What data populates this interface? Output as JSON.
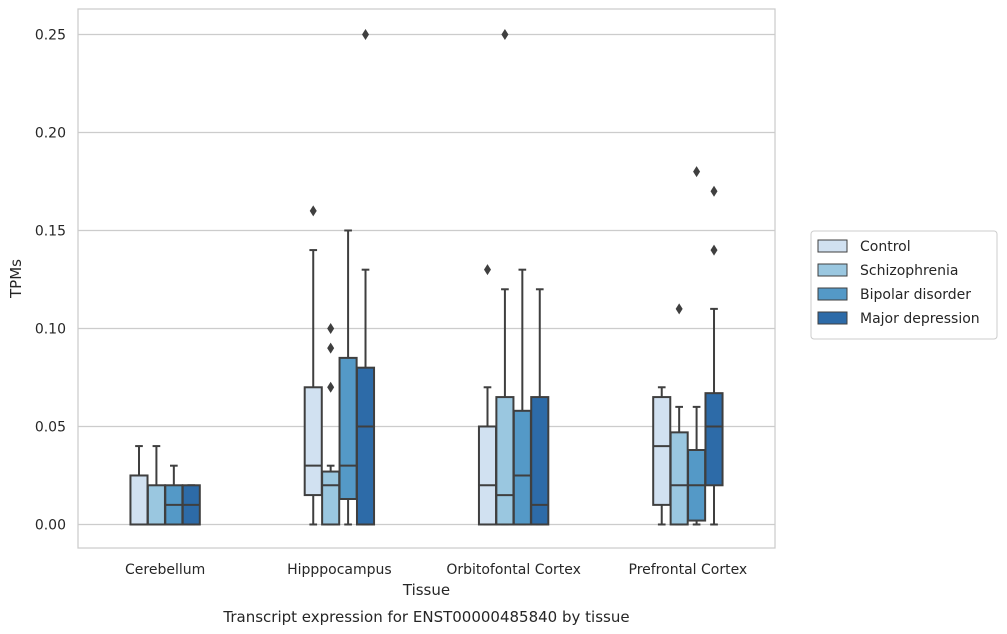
{
  "chart_data": {
    "type": "box",
    "caption": "Transcript expression for ENST00000485840 by tissue",
    "xlabel": "Tissue",
    "ylabel": "TPMs",
    "ylim": [
      -0.012,
      0.263
    ],
    "yticks": [
      0.0,
      0.05,
      0.1,
      0.15,
      0.2,
      0.25
    ],
    "ytick_labels": [
      "0.00",
      "0.05",
      "0.10",
      "0.15",
      "0.20",
      "0.25"
    ],
    "grid": "horizontal",
    "legend_position": "right",
    "categories": [
      "Cerebellum",
      "Hipppocampus",
      "Orbitofontal Cortex",
      "Prefrontal Cortex"
    ],
    "series": [
      {
        "name": "Control",
        "color": "#d1e1f1",
        "boxes": [
          {
            "whisker_low": 0,
            "q1": 0,
            "median": 0,
            "q3": 0.025,
            "whisker_high": 0.04,
            "outliers": []
          },
          {
            "whisker_low": 0,
            "q1": 0.015,
            "median": 0.03,
            "q3": 0.07,
            "whisker_high": 0.14,
            "outliers": [
              0.16
            ]
          },
          {
            "whisker_low": 0,
            "q1": 0,
            "median": 0.02,
            "q3": 0.05,
            "whisker_high": 0.07,
            "outliers": [
              0.13
            ]
          },
          {
            "whisker_low": 0,
            "q1": 0.01,
            "median": 0.04,
            "q3": 0.065,
            "whisker_high": 0.07,
            "outliers": []
          }
        ]
      },
      {
        "name": "Schizophrenia",
        "color": "#9ac7e0",
        "boxes": [
          {
            "whisker_low": 0,
            "q1": 0,
            "median": 0,
            "q3": 0.02,
            "whisker_high": 0.04,
            "outliers": []
          },
          {
            "whisker_low": 0,
            "q1": 0,
            "median": 0.02,
            "q3": 0.027,
            "whisker_high": 0.03,
            "outliers": [
              0.07,
              0.09,
              0.1
            ]
          },
          {
            "whisker_low": 0,
            "q1": 0,
            "median": 0.015,
            "q3": 0.065,
            "whisker_high": 0.12,
            "outliers": [
              0.25
            ]
          },
          {
            "whisker_low": 0,
            "q1": 0,
            "median": 0.02,
            "q3": 0.047,
            "whisker_high": 0.06,
            "outliers": [
              0.11
            ]
          }
        ]
      },
      {
        "name": "Bipolar disorder",
        "color": "#5499c7",
        "boxes": [
          {
            "whisker_low": 0,
            "q1": 0,
            "median": 0.01,
            "q3": 0.02,
            "whisker_high": 0.03,
            "outliers": []
          },
          {
            "whisker_low": 0,
            "q1": 0.013,
            "median": 0.03,
            "q3": 0.085,
            "whisker_high": 0.15,
            "outliers": []
          },
          {
            "whisker_low": 0,
            "q1": 0,
            "median": 0.025,
            "q3": 0.058,
            "whisker_high": 0.13,
            "outliers": []
          },
          {
            "whisker_low": 0,
            "q1": 0.002,
            "median": 0.02,
            "q3": 0.038,
            "whisker_high": 0.06,
            "outliers": [
              0.18
            ]
          }
        ]
      },
      {
        "name": "Major depression",
        "color": "#2d6ba8",
        "boxes": [
          {
            "whisker_low": 0,
            "q1": 0,
            "median": 0.01,
            "q3": 0.02,
            "whisker_high": 0.02,
            "outliers": []
          },
          {
            "whisker_low": 0,
            "q1": 0,
            "median": 0.05,
            "q3": 0.08,
            "whisker_high": 0.13,
            "outliers": [
              0.25
            ]
          },
          {
            "whisker_low": 0,
            "q1": 0,
            "median": 0.01,
            "q3": 0.065,
            "whisker_high": 0.12,
            "outliers": []
          },
          {
            "whisker_low": 0,
            "q1": 0.02,
            "median": 0.05,
            "q3": 0.067,
            "whisker_high": 0.11,
            "outliers": [
              0.14,
              0.17
            ]
          }
        ]
      }
    ]
  }
}
